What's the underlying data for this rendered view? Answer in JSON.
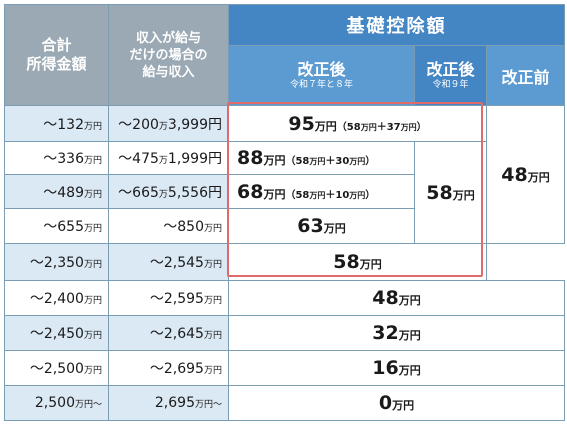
{
  "header": {
    "col_income": "合計\n所得金額",
    "col_salary": "収入が給与\nだけの場合の\n給与収入",
    "col_deduction": "基礎控除額",
    "after_r7_main": "改正後",
    "after_r7_note": "令和７年と８年",
    "after_r9_main": "改正後",
    "after_r9_note": "令和９年",
    "before": "改正前"
  },
  "rows": [
    {
      "income_num": "～132",
      "income_unit": "万円",
      "salary_num": "～200",
      "salary_unit": "万",
      "salary_rest": "3,999円"
    },
    {
      "income_num": "～336",
      "income_unit": "万円",
      "salary_num": "～475",
      "salary_unit": "万",
      "salary_rest": "1,999円"
    },
    {
      "income_num": "～489",
      "income_unit": "万円",
      "salary_num": "～665",
      "salary_unit": "万",
      "salary_rest": "5,556円"
    },
    {
      "income_num": "～655",
      "income_unit": "万円",
      "salary_num": "～850",
      "salary_unit": "万円",
      "salary_rest": ""
    },
    {
      "income_num": "～2,350",
      "income_unit": "万円",
      "salary_num": "～2,545",
      "salary_unit": "万円",
      "salary_rest": ""
    },
    {
      "income_num": "～2,400",
      "income_unit": "万円",
      "salary_num": "～2,595",
      "salary_unit": "万円",
      "salary_rest": ""
    },
    {
      "income_num": "～2,450",
      "income_unit": "万円",
      "salary_num": "～2,645",
      "salary_unit": "万円",
      "salary_rest": ""
    },
    {
      "income_num": "～2,500",
      "income_unit": "万円",
      "salary_num": "～2,695",
      "salary_unit": "万円",
      "salary_rest": ""
    },
    {
      "income_num": "2,500",
      "income_unit": "万円～",
      "salary_num": "2,695",
      "salary_unit": "万円～",
      "salary_rest": ""
    }
  ],
  "deductions": {
    "r1": {
      "amount": "95",
      "unit": "万円",
      "note_open": "（",
      "note_a": "58",
      "note_a_unit": "万円",
      "note_plus": "＋",
      "note_b": "37",
      "note_b_unit": "万円",
      "note_close": "）"
    },
    "r2": {
      "amount": "88",
      "unit": "万円",
      "note_open": "（",
      "note_a": "58",
      "note_a_unit": "万円",
      "note_plus": "＋",
      "note_b": "30",
      "note_b_unit": "万円",
      "note_close": "）"
    },
    "r3": {
      "amount": "68",
      "unit": "万円",
      "note_open": "（",
      "note_a": "58",
      "note_a_unit": "万円",
      "note_plus": "＋",
      "note_b": "10",
      "note_b_unit": "万円",
      "note_close": "）"
    },
    "r4": {
      "amount": "63",
      "unit": "万円"
    },
    "r9_58": {
      "amount": "58",
      "unit": "万円"
    },
    "r5_58": {
      "amount": "58",
      "unit": "万円"
    },
    "prev_48": {
      "amount": "48",
      "unit": "万円"
    },
    "r6_48": {
      "amount": "48",
      "unit": "万円"
    },
    "r7_32": {
      "amount": "32",
      "unit": "万円"
    },
    "r8_16": {
      "amount": "16",
      "unit": "万円"
    },
    "r9_0": {
      "amount": "0",
      "unit": "万円"
    }
  },
  "colors": {
    "header_gray": "#9aa9b3",
    "header_blue": "#4486c3",
    "light_blue_row": "#dbe9f5",
    "border": "#7a9db3",
    "highlight_red": "#e36a6a"
  }
}
